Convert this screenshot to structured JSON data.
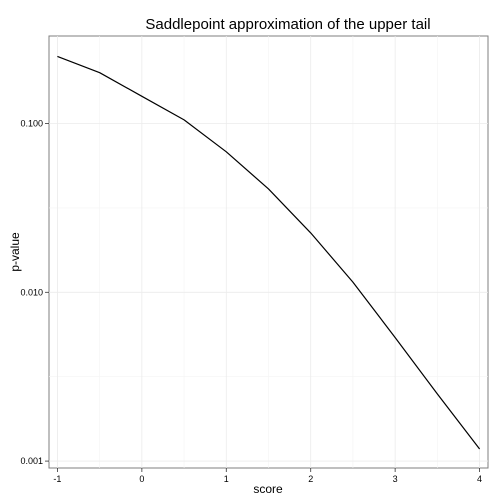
{
  "chart_data": {
    "type": "line",
    "title": "Saddlepoint approximation of the upper tail",
    "xlabel": "score",
    "ylabel": "p-value",
    "xlim": [
      -1.1,
      4.1
    ],
    "ylim": [
      0.00091,
      0.33
    ],
    "y_scale": "log10",
    "grid": true,
    "x_ticks": [
      -1,
      0,
      1,
      2,
      3,
      4
    ],
    "x_tick_labels": [
      "-1",
      "0",
      "1",
      "2",
      "3",
      "4"
    ],
    "y_ticks": [
      0.001,
      0.01,
      0.1
    ],
    "y_tick_labels": [
      "0.001",
      "0.010",
      "0.100"
    ],
    "series": [
      {
        "color": "#000000",
        "x": [
          -1.0,
          -0.5,
          0.0,
          0.5,
          1.0,
          1.5,
          2.0,
          2.5,
          3.0,
          3.5,
          4.0
        ],
        "y": [
          0.25,
          0.2,
          0.145,
          0.105,
          0.068,
          0.041,
          0.0225,
          0.0115,
          0.0054,
          0.0025,
          0.00118
        ]
      }
    ]
  }
}
